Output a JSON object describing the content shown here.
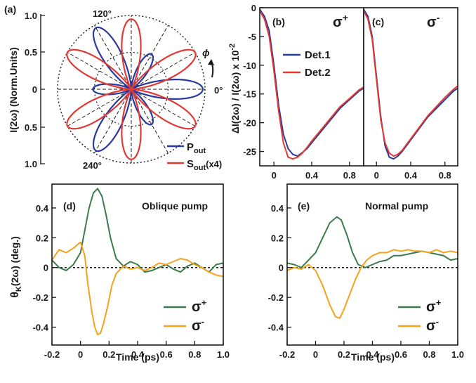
{
  "colors": {
    "blue": "#2a3a9c",
    "red": "#e03a35",
    "green": "#3d7a4e",
    "orange": "#f5a21c",
    "black": "#1a1a1a"
  },
  "chart_data": [
    {
      "panel": "(a)",
      "type": "polar",
      "ylabel": "I(2ω) (Norm.Units)",
      "radial_ticks": [
        "1.0",
        "0.5",
        "0",
        "0.5",
        "1.0"
      ],
      "angle_labels": [
        "120°",
        "0°",
        "240°"
      ],
      "angle_marker": "ϕ",
      "grid_circles": [
        0.5,
        1.0
      ],
      "series": [
        {
          "name_main": "P",
          "name_sub": "out",
          "color": "blue",
          "model": "r = cos²(3ϕ−30°) with dominant lobes",
          "lobes": [
            {
              "angle_deg": 0,
              "r": 0.97
            },
            {
              "angle_deg": 60,
              "r": 0.55
            },
            {
              "angle_deg": 120,
              "r": 0.96
            },
            {
              "angle_deg": 180,
              "r": 0.52
            },
            {
              "angle_deg": 240,
              "r": 0.96
            },
            {
              "angle_deg": 300,
              "r": 0.55
            }
          ]
        },
        {
          "name_main": "S",
          "name_sub": "out",
          "name_extra": "(x4)",
          "color": "red",
          "lobes": [
            {
              "angle_deg": 30,
              "r": 1.0
            },
            {
              "angle_deg": 90,
              "r": 0.95
            },
            {
              "angle_deg": 150,
              "r": 1.0
            },
            {
              "angle_deg": 210,
              "r": 1.0
            },
            {
              "angle_deg": 270,
              "r": 0.95
            },
            {
              "angle_deg": 330,
              "r": 1.0
            }
          ]
        }
      ]
    },
    {
      "panel": "(b)",
      "type": "line",
      "polarization": "σ",
      "pol_sign": "+",
      "ylabel": "ΔI(2ω) / I(2ω) x 10",
      "ylabel_exp": "-2",
      "xlim": [
        -0.15,
        0.95
      ],
      "ylim": [
        -27.5,
        0
      ],
      "xticks": [
        0,
        0.4,
        0.8
      ],
      "xtick_labels": [
        "0",
        "0.4",
        "0.8"
      ],
      "yticks": [
        0,
        -5,
        -10,
        -15,
        -20,
        -25
      ],
      "ytick_labels": [
        "0",
        "-5",
        "-10",
        "-15",
        "-20",
        "-25"
      ],
      "series": [
        {
          "name": "Det.1",
          "color": "blue",
          "x": [
            -0.15,
            -0.1,
            -0.05,
            0.0,
            0.05,
            0.1,
            0.15,
            0.2,
            0.25,
            0.3,
            0.35,
            0.4,
            0.5,
            0.6,
            0.7,
            0.8,
            0.9,
            0.95
          ],
          "y": [
            -0.3,
            -1.5,
            -4,
            -10,
            -17,
            -22,
            -24.5,
            -25.5,
            -25.8,
            -25.2,
            -24.5,
            -23.5,
            -21.5,
            -19.5,
            -17.5,
            -16,
            -14.5,
            -14
          ]
        },
        {
          "name": "Det.2",
          "color": "red",
          "x": [
            -0.15,
            -0.1,
            -0.05,
            0.0,
            0.05,
            0.1,
            0.15,
            0.2,
            0.25,
            0.3,
            0.35,
            0.4,
            0.5,
            0.6,
            0.7,
            0.8,
            0.9,
            0.95
          ],
          "y": [
            -0.5,
            -2,
            -5,
            -11,
            -18,
            -23.5,
            -26,
            -26.3,
            -26,
            -25.3,
            -24.3,
            -23.2,
            -21.2,
            -19.2,
            -17.2,
            -15.8,
            -14.3,
            -13.8
          ]
        }
      ]
    },
    {
      "panel": "(c)",
      "type": "line",
      "polarization": "σ",
      "pol_sign": "-",
      "xlim": [
        -0.15,
        0.95
      ],
      "ylim": [
        -27.5,
        0
      ],
      "xticks": [
        0,
        0.4,
        0.8
      ],
      "xtick_labels": [
        "0",
        "0.4",
        "0.8"
      ],
      "series": [
        {
          "name": "Det.1",
          "color": "blue",
          "x": [
            -0.15,
            -0.1,
            -0.05,
            0.0,
            0.05,
            0.1,
            0.15,
            0.2,
            0.25,
            0.3,
            0.35,
            0.4,
            0.5,
            0.6,
            0.7,
            0.8,
            0.9,
            0.95
          ],
          "y": [
            -0.3,
            -1.5,
            -5,
            -12,
            -19,
            -24,
            -26,
            -26.3,
            -25.8,
            -25,
            -24,
            -23,
            -21,
            -19,
            -17.5,
            -16,
            -14.5,
            -14
          ]
        },
        {
          "name": "Det.2",
          "color": "red",
          "x": [
            -0.15,
            -0.1,
            -0.05,
            0.0,
            0.05,
            0.1,
            0.15,
            0.2,
            0.25,
            0.3,
            0.35,
            0.4,
            0.5,
            0.6,
            0.7,
            0.8,
            0.9,
            0.95
          ],
          "y": [
            -0.5,
            -2,
            -5.5,
            -12.5,
            -19.5,
            -23.5,
            -25.3,
            -25.8,
            -25.5,
            -24.8,
            -23.8,
            -22.8,
            -20.8,
            -18.8,
            -17.2,
            -15.6,
            -14.2,
            -13.6
          ]
        }
      ]
    },
    {
      "panel": "(d)",
      "type": "line",
      "annotation": "Oblique pump",
      "ylabel_main": "θ",
      "ylabel_sub": "K",
      "ylabel_rest": "(2ω) (deg.)",
      "xlabel": "Time (ps)",
      "xlim": [
        -0.2,
        1.0
      ],
      "ylim": [
        -0.52,
        0.56
      ],
      "xticks": [
        -0.2,
        0,
        0.2,
        0.4,
        0.6,
        0.8,
        1.0
      ],
      "xtick_labels": [
        "-0.2",
        "0",
        "0.2",
        "0.4",
        "0.6",
        "0.8",
        "1.0"
      ],
      "yticks": [
        0.4,
        0.2,
        0,
        -0.2,
        -0.4
      ],
      "ytick_labels": [
        "0.4",
        "0.2",
        "0",
        "-0.2",
        "-0.4"
      ],
      "zero_line": true,
      "series": [
        {
          "name": "σ",
          "sign": "+",
          "color": "green",
          "x": [
            -0.2,
            -0.15,
            -0.1,
            -0.05,
            0.0,
            0.03,
            0.06,
            0.09,
            0.12,
            0.15,
            0.18,
            0.21,
            0.25,
            0.3,
            0.35,
            0.4,
            0.45,
            0.5,
            0.55,
            0.6,
            0.65,
            0.7,
            0.75,
            0.8,
            0.85,
            0.9,
            0.95,
            1.0
          ],
          "y": [
            0.05,
            0.0,
            -0.02,
            0.02,
            0.1,
            0.25,
            0.4,
            0.5,
            0.53,
            0.48,
            0.35,
            0.2,
            0.06,
            0.01,
            0.04,
            0.02,
            -0.03,
            -0.02,
            0.0,
            0.02,
            -0.01,
            -0.03,
            0.01,
            0.03,
            0.0,
            -0.03,
            0.02,
            0.03
          ]
        },
        {
          "name": "σ",
          "sign": "-",
          "color": "orange",
          "x": [
            -0.2,
            -0.15,
            -0.1,
            -0.05,
            0.0,
            0.03,
            0.05,
            0.08,
            0.1,
            0.12,
            0.14,
            0.16,
            0.19,
            0.22,
            0.25,
            0.3,
            0.35,
            0.4,
            0.45,
            0.5,
            0.55,
            0.6,
            0.65,
            0.7,
            0.75,
            0.8,
            0.85,
            0.9,
            0.95,
            1.0
          ],
          "y": [
            0.05,
            0.12,
            0.1,
            0.13,
            0.17,
            0.08,
            -0.1,
            -0.3,
            -0.4,
            -0.45,
            -0.44,
            -0.38,
            -0.26,
            -0.12,
            -0.04,
            0.01,
            -0.01,
            0.0,
            -0.02,
            0.0,
            0.03,
            0.02,
            0.04,
            0.06,
            0.05,
            0.02,
            0.0,
            -0.03,
            -0.05,
            -0.06
          ]
        }
      ],
      "legend": "bottom-right"
    },
    {
      "panel": "(e)",
      "type": "line",
      "annotation": "Normal pump",
      "xlabel": "Time (ps)",
      "xlim": [
        -0.2,
        1.0
      ],
      "ylim": [
        -0.52,
        0.56
      ],
      "xticks": [
        -0.2,
        0,
        0.2,
        0.4,
        0.6,
        0.8,
        1.0
      ],
      "xtick_labels": [
        "-0.2",
        "0",
        "0.2",
        "0.4",
        "0.6",
        "0.8",
        "1.0"
      ],
      "yticks": [
        0.4,
        0.2,
        0,
        -0.2,
        -0.4
      ],
      "ytick_labels": [
        "0.4",
        "0.2",
        "0",
        "-0.2",
        "-0.4"
      ],
      "zero_line": true,
      "series": [
        {
          "name": "σ",
          "sign": "+",
          "color": "green",
          "x": [
            -0.2,
            -0.15,
            -0.1,
            -0.05,
            0.0,
            0.05,
            0.1,
            0.15,
            0.18,
            0.22,
            0.26,
            0.3,
            0.35,
            0.4,
            0.45,
            0.5,
            0.55,
            0.6,
            0.65,
            0.7,
            0.75,
            0.8,
            0.85,
            0.9,
            0.95,
            1.0
          ],
          "y": [
            0.03,
            0.02,
            0.0,
            0.05,
            0.1,
            0.2,
            0.3,
            0.34,
            0.32,
            0.22,
            0.1,
            0.02,
            0.0,
            0.02,
            0.04,
            0.05,
            0.08,
            0.08,
            0.09,
            0.1,
            0.11,
            0.1,
            0.09,
            0.08,
            0.05,
            0.06
          ]
        },
        {
          "name": "σ",
          "sign": "-",
          "color": "orange",
          "x": [
            -0.2,
            -0.15,
            -0.1,
            -0.05,
            0.0,
            0.05,
            0.1,
            0.14,
            0.17,
            0.2,
            0.24,
            0.28,
            0.32,
            0.36,
            0.4,
            0.45,
            0.5,
            0.55,
            0.6,
            0.65,
            0.7,
            0.75,
            0.8,
            0.85,
            0.9,
            0.95,
            1.0
          ],
          "y": [
            -0.02,
            0.0,
            -0.01,
            0.02,
            -0.02,
            -0.12,
            -0.25,
            -0.33,
            -0.34,
            -0.28,
            -0.18,
            -0.08,
            0.0,
            0.05,
            0.08,
            0.1,
            0.1,
            0.12,
            0.11,
            0.12,
            0.11,
            0.11,
            0.1,
            0.12,
            0.1,
            0.11,
            0.1
          ]
        }
      ],
      "legend": "bottom-right"
    }
  ]
}
